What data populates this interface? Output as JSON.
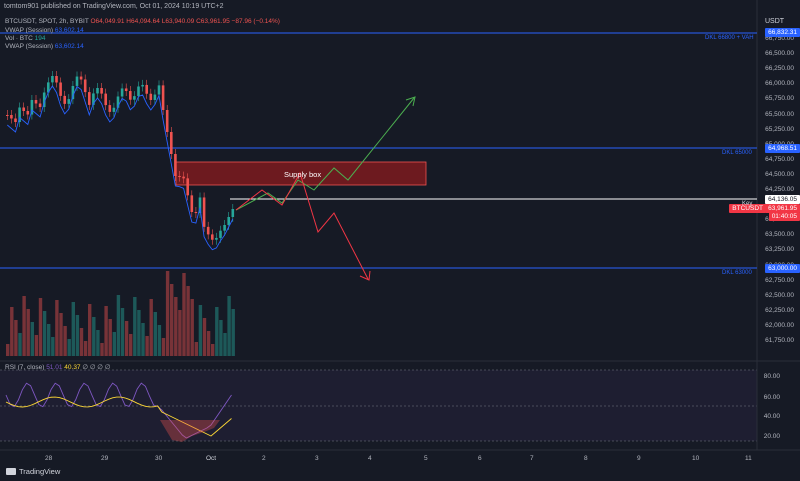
{
  "header": {
    "publisher": "tomtom901 published on TradingView.com, Oct 01, 2024 10:19 UTC+2"
  },
  "ohlc": {
    "symbol": "BTCUSDT, SPOT, 2h, BYBIT",
    "open": "O64,049.91",
    "high": "H64,094.64",
    "low": "L63,940.09",
    "close": "C63,961.95",
    "change": "−87.96 (−0.14%)"
  },
  "legends": [
    {
      "name": "VWAP (Session)",
      "value": "63,602.14"
    },
    {
      "name": "Vol · BTC",
      "value": "194"
    },
    {
      "name": "VWAP (Session)",
      "value": "63,602.14"
    }
  ],
  "currency": "USDT",
  "price_axis": [
    "66,750.00",
    "66,500.00",
    "66,250.00",
    "66,000.00",
    "65,750.00",
    "65,500.00",
    "65,250.00",
    "65,000.00",
    "64,750.00",
    "64,500.00",
    "64,250.00",
    "64,000.00",
    "63,750.00",
    "63,500.00",
    "63,250.00",
    "63,000.00",
    "62,750.00",
    "62,500.00",
    "62,250.00",
    "62,000.00",
    "61,750.00"
  ],
  "price_tags": {
    "top_level": "66,832.31",
    "mid_level": "64,968.51",
    "key": "64,136.05",
    "current_symbol": "BTCUSDT",
    "current_price": "63,961.95",
    "countdown": "01:40:05",
    "low_level": "63,000.00"
  },
  "level_labels": {
    "top": "DKL 66800 + VAH",
    "mid": "DKL 65000",
    "low": "DKL 63000",
    "key": "Key"
  },
  "annotation": "Supply box",
  "rsi": {
    "label": "RSI (7, close)",
    "v1": "51.01",
    "v2": "40.37",
    "dots": "∅ ∅ ∅ ∅",
    "axis": [
      "80.00",
      "60.00",
      "40.00",
      "20.00"
    ]
  },
  "time_axis": [
    "28",
    "29",
    "30",
    "Oct",
    "2",
    "3",
    "4",
    "5",
    "6",
    "7",
    "8",
    "9",
    "10",
    "11"
  ],
  "footer": {
    "brand": "TradingView"
  },
  "colors": {
    "bg": "#161a25",
    "up": "#26a69a",
    "down": "#ef5350",
    "level": "#2962ff",
    "supply": "#b71c1c",
    "green_arrow": "#4caf50",
    "red_arrow": "#f23645",
    "vwap": "#2962ff",
    "rsi": "#7e57c2",
    "rsi_ma": "#fdd835"
  }
}
